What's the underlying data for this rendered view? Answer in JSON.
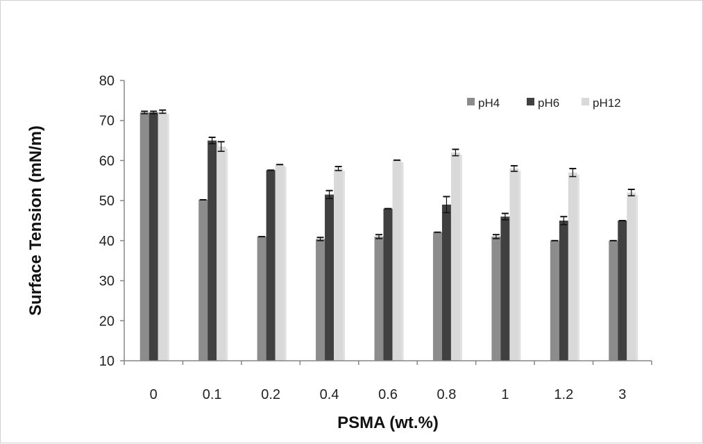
{
  "chart_data": {
    "type": "bar",
    "xlabel": "PSMA (wt.%)",
    "ylabel": "Surface Tension (mN/m)",
    "ylim": [
      10,
      80
    ],
    "yticks": [
      10,
      20,
      30,
      40,
      50,
      60,
      70,
      80
    ],
    "categories": [
      "0",
      "0.1",
      "0.2",
      "0.4",
      "0.6",
      "0.8",
      "1",
      "1.2",
      "3"
    ],
    "legend_position": "top-right",
    "grid": false,
    "series": [
      {
        "name": "pH4",
        "color": "#8c8c8c",
        "values": [
          72,
          50.2,
          41,
          40.4,
          41,
          42.1,
          41,
          40,
          40
        ],
        "errors": [
          0.3,
          0,
          0,
          0.4,
          0.5,
          0,
          0.5,
          0,
          0
        ]
      },
      {
        "name": "pH6",
        "color": "#404040",
        "values": [
          72,
          65,
          57.6,
          51.5,
          48,
          49,
          46,
          45,
          45
        ],
        "errors": [
          0.3,
          0.8,
          0,
          1.0,
          0,
          2.0,
          0.8,
          1.0,
          0
        ]
      },
      {
        "name": "pH12",
        "color": "#d9d9d9",
        "values": [
          72.2,
          63.5,
          59,
          58,
          60.1,
          62,
          58,
          57,
          52
        ],
        "errors": [
          0.4,
          1.2,
          0,
          0.5,
          0,
          0.8,
          0.7,
          1.0,
          0.8
        ]
      }
    ]
  }
}
